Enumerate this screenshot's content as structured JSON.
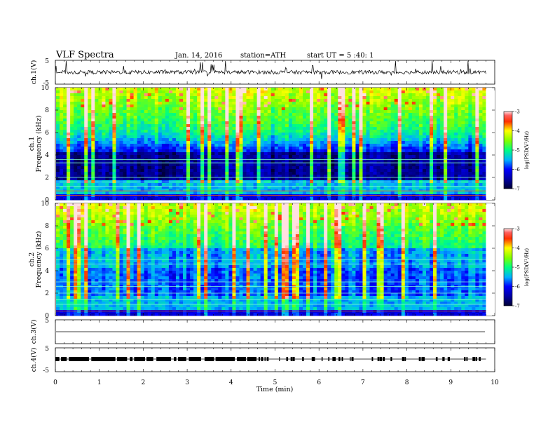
{
  "header": {
    "title": "VLF Spectra",
    "date": "Jan. 14, 2016",
    "station": "station=ATH",
    "start": "start UT =  5 :40: 1"
  },
  "chart_data": [
    {
      "type": "line",
      "name": "ch1-waveform",
      "ylabel": "ch.1(V)",
      "ylim": [
        -5,
        5
      ],
      "yticks": [
        "5",
        "-5"
      ],
      "baseline": 0,
      "xlim": [
        0,
        10
      ],
      "data_end": 9.8
    },
    {
      "type": "heatmap",
      "name": "ch1-spectrogram",
      "ylabel_top": "ch.1",
      "ylabel": "Frequency (kHz)",
      "ylim": [
        0,
        10
      ],
      "yticks": [
        "0",
        "2",
        "4",
        "6",
        "8",
        "10"
      ],
      "xlim": [
        0,
        10
      ],
      "data_end": 9.8,
      "colorbar": {
        "label": "log(PSD(V²/Hz)",
        "range": [
          -7,
          -3
        ],
        "ticks": [
          "-3",
          "-4",
          "-5",
          "-6",
          "-7"
        ]
      }
    },
    {
      "type": "heatmap",
      "name": "ch2-spectrogram",
      "ylabel_top": "ch.2",
      "ylabel": "Frequency (kHz)",
      "ylim": [
        0,
        10
      ],
      "yticks": [
        "0",
        "2",
        "4",
        "6",
        "8",
        "10"
      ],
      "xlim": [
        0,
        10
      ],
      "data_end": 9.8,
      "colorbar": {
        "label": "log(PSD(V²/Hz)",
        "range": [
          -7,
          -3
        ],
        "ticks": [
          "-3",
          "-4",
          "-5",
          "-6",
          "-7"
        ]
      }
    },
    {
      "type": "line",
      "name": "ch3-waveform",
      "ylabel": "ch.3(V)",
      "ylim": [
        -5,
        5
      ],
      "yticks": [
        "5"
      ],
      "baseline": 0,
      "xlim": [
        0,
        10
      ],
      "data_end": 9.8
    },
    {
      "type": "line",
      "name": "ch4-waveform",
      "ylabel": "ch.4(V)",
      "ylim": [
        -5,
        5
      ],
      "yticks": [
        "5",
        "-5"
      ],
      "baseline": 0,
      "xlim": [
        0,
        10
      ],
      "data_end": 9.8
    }
  ],
  "xaxis": {
    "label": "Time (min)",
    "ticks": [
      "0",
      "1",
      "2",
      "3",
      "4",
      "5",
      "6",
      "7",
      "8",
      "9",
      "10"
    ]
  }
}
